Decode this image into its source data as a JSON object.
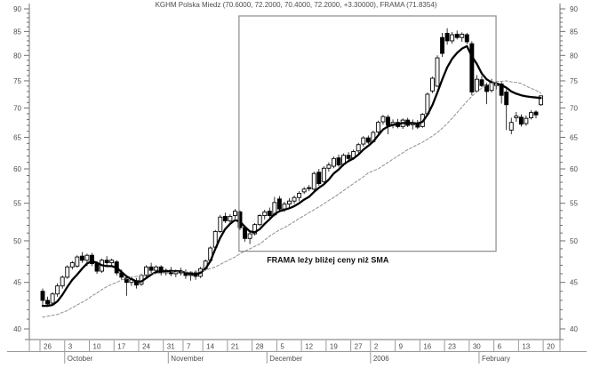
{
  "title": "KGHM Polska Miedz (70.6000, 72.2000, 70.4000, 72.2000, +3.30000), FRAMA (71.8354)",
  "annotation": {
    "text": "FRAMA leży bliżej ceny niż SMA",
    "i": 57.8,
    "price": 47.3
  },
  "colors": {
    "background": "#ffffff",
    "axis": "#707070",
    "grid_separator": "#9a9a9a",
    "label": "#4d4d4d",
    "candle": "#000000",
    "candle_up_fill": "#ffffff",
    "candle_down_fill": "#000000",
    "frama_line": "#000000",
    "sma_line": "#909090",
    "highlight_box": "#8c8c8c"
  },
  "chart_data": {
    "type": "candlestick",
    "title": "KGHM Polska Miedz (70.6000, 72.2000, 70.4000, 72.2000, +3.30000), FRAMA (71.8354)",
    "y_axis": {
      "min": 40,
      "max": 90,
      "scale": "log",
      "major_step": 5,
      "minor_step": 1,
      "sides": [
        "left",
        "right"
      ]
    },
    "x_ticks": [
      {
        "i": 0,
        "label": "26"
      },
      {
        "i": 5,
        "label": "3"
      },
      {
        "i": 10,
        "label": "10"
      },
      {
        "i": 15,
        "label": "17"
      },
      {
        "i": 20,
        "label": "24"
      },
      {
        "i": 25,
        "label": "31"
      },
      {
        "i": 29,
        "label": "7"
      },
      {
        "i": 33,
        "label": "14"
      },
      {
        "i": 38,
        "label": "21"
      },
      {
        "i": 43,
        "label": "28"
      },
      {
        "i": 48,
        "label": "5"
      },
      {
        "i": 53,
        "label": "12"
      },
      {
        "i": 58,
        "label": "19"
      },
      {
        "i": 63,
        "label": "27"
      },
      {
        "i": 67,
        "label": "2"
      },
      {
        "i": 72,
        "label": "9"
      },
      {
        "i": 77,
        "label": "16"
      },
      {
        "i": 82,
        "label": "23"
      },
      {
        "i": 87,
        "label": "30"
      },
      {
        "i": 92,
        "label": "6"
      },
      {
        "i": 97,
        "label": "13"
      },
      {
        "i": 102,
        "label": "20"
      }
    ],
    "month_labels": [
      {
        "i": 5,
        "label": "October"
      },
      {
        "i": 26,
        "label": "November"
      },
      {
        "i": 46,
        "label": "December"
      },
      {
        "i": 67,
        "label": "2006"
      },
      {
        "i": 89,
        "label": "February"
      }
    ],
    "dates": [
      "Sep 26",
      "Sep 27",
      "Sep 28",
      "Sep 29",
      "Sep 30",
      "Oct 3",
      "Oct 4",
      "Oct 5",
      "Oct 6",
      "Oct 7",
      "Oct 10",
      "Oct 11",
      "Oct 12",
      "Oct 13",
      "Oct 14",
      "Oct 17",
      "Oct 18",
      "Oct 19",
      "Oct 20",
      "Oct 21",
      "Oct 24",
      "Oct 25",
      "Oct 26",
      "Oct 27",
      "Oct 28",
      "Oct 31",
      "Nov 2",
      "Nov 3",
      "Nov 4",
      "Nov 7",
      "Nov 8",
      "Nov 9",
      "Nov 10",
      "Nov 14",
      "Nov 15",
      "Nov 16",
      "Nov 17",
      "Nov 18",
      "Nov 21",
      "Nov 22",
      "Nov 23",
      "Nov 24",
      "Nov 25",
      "Nov 28",
      "Nov 29",
      "Nov 30",
      "Dec 1",
      "Dec 2",
      "Dec 5",
      "Dec 6",
      "Dec 7",
      "Dec 8",
      "Dec 9",
      "Dec 12",
      "Dec 13",
      "Dec 14",
      "Dec 15",
      "Dec 16",
      "Dec 19",
      "Dec 20",
      "Dec 21",
      "Dec 22",
      "Dec 23",
      "Dec 27",
      "Dec 28",
      "Dec 29",
      "Dec 30",
      "Jan 2",
      "Jan 3",
      "Jan 4",
      "Jan 5",
      "Jan 6",
      "Jan 9",
      "Jan 10",
      "Jan 11",
      "Jan 12",
      "Jan 13",
      "Jan 16",
      "Jan 17",
      "Jan 18",
      "Jan 19",
      "Jan 20",
      "Jan 23",
      "Jan 24",
      "Jan 25",
      "Jan 26",
      "Jan 27",
      "Jan 30",
      "Jan 31",
      "Feb 1",
      "Feb 2",
      "Feb 3",
      "Feb 6",
      "Feb 7",
      "Feb 8",
      "Feb 9",
      "Feb 10",
      "Feb 13",
      "Feb 14",
      "Feb 15",
      "Feb 16",
      "Feb 17"
    ],
    "ohlc": [
      [
        44.0,
        44.3,
        42.4,
        43.0
      ],
      [
        43.0,
        43.4,
        42.3,
        42.6
      ],
      [
        42.7,
        43.9,
        42.5,
        43.7
      ],
      [
        43.7,
        44.9,
        43.4,
        44.6
      ],
      [
        44.6,
        45.8,
        44.3,
        45.6
      ],
      [
        45.6,
        47.0,
        45.4,
        46.8
      ],
      [
        46.8,
        47.5,
        46.5,
        47.3
      ],
      [
        46.9,
        48.2,
        46.7,
        48.0
      ],
      [
        48.1,
        48.6,
        47.3,
        47.6
      ],
      [
        47.6,
        48.4,
        46.9,
        48.2
      ],
      [
        48.2,
        48.5,
        46.9,
        47.2
      ],
      [
        47.2,
        47.5,
        46.0,
        46.3
      ],
      [
        46.3,
        47.8,
        46.1,
        47.6
      ],
      [
        47.6,
        48.1,
        47.0,
        47.3
      ],
      [
        47.3,
        47.8,
        46.8,
        47.6
      ],
      [
        47.4,
        47.6,
        45.8,
        46.1
      ],
      [
        46.1,
        46.5,
        45.3,
        45.6
      ],
      [
        45.5,
        45.8,
        43.5,
        45.0
      ],
      [
        45.0,
        45.6,
        44.6,
        45.3
      ],
      [
        45.2,
        45.5,
        44.3,
        44.7
      ],
      [
        44.8,
        46.0,
        44.6,
        45.8
      ],
      [
        45.8,
        47.0,
        45.6,
        46.8
      ],
      [
        46.8,
        47.3,
        46.1,
        46.4
      ],
      [
        46.4,
        47.0,
        46.0,
        46.8
      ],
      [
        46.8,
        47.0,
        45.8,
        46.1
      ],
      [
        46.1,
        46.6,
        45.8,
        46.4
      ],
      [
        46.4,
        46.8,
        45.7,
        46.0
      ],
      [
        46.0,
        46.5,
        45.6,
        46.3
      ],
      [
        46.3,
        46.7,
        45.8,
        46.1
      ],
      [
        46.1,
        46.5,
        45.4,
        45.8
      ],
      [
        45.8,
        46.3,
        45.2,
        46.1
      ],
      [
        46.1,
        46.4,
        45.3,
        45.7
      ],
      [
        45.7,
        46.8,
        45.5,
        46.6
      ],
      [
        46.6,
        47.7,
        46.4,
        47.5
      ],
      [
        47.6,
        49.3,
        47.3,
        49.1
      ],
      [
        49.2,
        51.4,
        49.0,
        51.2
      ],
      [
        51.2,
        53.4,
        51.0,
        53.1
      ],
      [
        53.2,
        53.7,
        52.3,
        52.6
      ],
      [
        52.6,
        53.5,
        52.2,
        53.2
      ],
      [
        53.3,
        54.2,
        52.9,
        53.9
      ],
      [
        53.8,
        54.0,
        51.4,
        51.7
      ],
      [
        51.7,
        52.0,
        49.9,
        50.3
      ],
      [
        50.3,
        51.2,
        49.6,
        50.9
      ],
      [
        50.9,
        52.3,
        50.7,
        52.1
      ],
      [
        52.1,
        53.5,
        51.9,
        53.3
      ],
      [
        53.3,
        54.1,
        52.8,
        53.8
      ],
      [
        53.9,
        54.4,
        53.0,
        53.3
      ],
      [
        53.4,
        55.9,
        53.2,
        55.1
      ],
      [
        55.6,
        56.0,
        53.9,
        54.2
      ],
      [
        54.2,
        55.2,
        53.8,
        54.9
      ],
      [
        54.9,
        55.7,
        54.4,
        55.3
      ],
      [
        55.3,
        56.1,
        54.9,
        55.8
      ],
      [
        55.8,
        56.7,
        55.3,
        56.4
      ],
      [
        56.6,
        57.3,
        56.3,
        57.0
      ],
      [
        57.1,
        57.6,
        56.7,
        57.2
      ],
      [
        57.0,
        59.6,
        56.8,
        59.3
      ],
      [
        59.5,
        60.0,
        57.5,
        57.8
      ],
      [
        58.1,
        60.4,
        57.9,
        60.1
      ],
      [
        60.1,
        61.0,
        59.6,
        60.6
      ],
      [
        60.4,
        61.9,
        60.1,
        61.6
      ],
      [
        61.7,
        62.2,
        60.3,
        60.6
      ],
      [
        60.7,
        62.4,
        60.4,
        62.1
      ],
      [
        62.1,
        62.6,
        61.3,
        61.6
      ],
      [
        61.7,
        63.0,
        61.4,
        62.7
      ],
      [
        62.8,
        64.1,
        62.4,
        63.8
      ],
      [
        63.9,
        65.2,
        63.5,
        64.9
      ],
      [
        64.9,
        65.3,
        63.9,
        64.2
      ],
      [
        64.3,
        66.1,
        64.1,
        65.8
      ],
      [
        65.9,
        67.8,
        65.6,
        67.5
      ],
      [
        67.6,
        68.8,
        67.1,
        68.5
      ],
      [
        68.4,
        68.8,
        65.5,
        67.0
      ],
      [
        67.0,
        68.0,
        66.5,
        67.5
      ],
      [
        67.5,
        68.1,
        66.5,
        66.8
      ],
      [
        66.8,
        68.2,
        66.4,
        67.9
      ],
      [
        67.9,
        68.3,
        66.7,
        67.0
      ],
      [
        67.1,
        68.0,
        66.3,
        67.3
      ],
      [
        67.4,
        67.9,
        66.4,
        66.7
      ],
      [
        66.8,
        69.1,
        66.6,
        68.9
      ],
      [
        69.0,
        72.8,
        68.7,
        72.5
      ],
      [
        73.1,
        75.8,
        72.7,
        75.5
      ],
      [
        74.0,
        80.0,
        73.8,
        79.5
      ],
      [
        83.7,
        84.7,
        79.7,
        80.4
      ],
      [
        84.6,
        85.7,
        82.2,
        83.0
      ],
      [
        83.0,
        84.9,
        82.4,
        84.3
      ],
      [
        84.4,
        85.2,
        83.3,
        83.7
      ],
      [
        83.7,
        84.8,
        82.8,
        84.4
      ],
      [
        84.3,
        84.7,
        82.3,
        82.8
      ],
      [
        82.4,
        82.9,
        72.3,
        72.9
      ],
      [
        73.1,
        76.1,
        72.8,
        75.3
      ],
      [
        75.2,
        75.9,
        73.8,
        74.1
      ],
      [
        74.2,
        74.6,
        70.7,
        73.0
      ],
      [
        73.2,
        75.4,
        72.8,
        74.8
      ],
      [
        74.1,
        74.9,
        73.4,
        74.5
      ],
      [
        74.4,
        74.8,
        70.8,
        72.3
      ],
      [
        72.9,
        73.4,
        66.2,
        70.6
      ],
      [
        66.2,
        68.3,
        65.5,
        67.5
      ],
      [
        68.3,
        69.3,
        67.6,
        68.6
      ],
      [
        68.4,
        68.9,
        66.8,
        67.2
      ],
      [
        67.3,
        68.7,
        66.9,
        68.2
      ],
      [
        68.3,
        69.6,
        68.0,
        69.2
      ],
      [
        69.3,
        69.6,
        68.2,
        68.8
      ],
      [
        70.6,
        72.2,
        70.4,
        72.2
      ]
    ],
    "series": [
      {
        "name": "FRAMA",
        "style": "solid-thick",
        "last_value": 71.8354,
        "values": [
          42.4,
          42.4,
          42.5,
          42.9,
          43.6,
          44.5,
          45.3,
          45.9,
          46.6,
          47.2,
          47.5,
          47.3,
          47.0,
          46.9,
          46.9,
          46.7,
          46.2,
          45.7,
          45.4,
          45.1,
          45.1,
          45.5,
          45.9,
          46.2,
          46.3,
          46.3,
          46.3,
          46.3,
          46.3,
          46.1,
          46.0,
          45.9,
          46.1,
          46.6,
          47.5,
          49.0,
          50.4,
          51.5,
          52.2,
          52.7,
          52.5,
          51.8,
          51.2,
          51.1,
          51.5,
          52.2,
          52.8,
          53.5,
          53.9,
          54.1,
          54.3,
          54.6,
          55.0,
          55.5,
          55.9,
          56.6,
          57.2,
          57.7,
          58.4,
          59.3,
          59.9,
          60.7,
          61.2,
          61.6,
          62.2,
          63.0,
          63.6,
          64.3,
          65.3,
          66.3,
          66.8,
          67.1,
          67.2,
          67.4,
          67.4,
          67.4,
          67.3,
          67.6,
          68.8,
          70.5,
          72.8,
          75.3,
          77.6,
          79.3,
          80.5,
          81.4,
          81.9,
          79.8,
          78.3,
          76.4,
          75.3,
          74.7,
          74.5,
          74.2,
          73.7,
          73.0,
          72.6,
          72.3,
          72.1,
          72.0,
          71.9,
          71.8
        ]
      },
      {
        "name": "SMA",
        "style": "dashed",
        "values": [
          41.2,
          41.3,
          41.4,
          41.5,
          41.7,
          41.9,
          42.2,
          42.5,
          42.8,
          43.1,
          43.5,
          43.8,
          44.2,
          44.5,
          44.8,
          45.0,
          45.3,
          45.4,
          45.6,
          45.7,
          45.8,
          45.9,
          46.0,
          46.0,
          46.1,
          46.1,
          46.2,
          46.2,
          46.2,
          46.2,
          46.2,
          46.2,
          46.3,
          46.4,
          46.6,
          46.8,
          47.1,
          47.4,
          47.7,
          48.0,
          48.4,
          48.7,
          49.0,
          49.3,
          49.6,
          50.1,
          50.6,
          51.0,
          51.4,
          51.7,
          52.1,
          52.5,
          52.9,
          53.3,
          53.7,
          54.1,
          54.5,
          54.9,
          55.4,
          55.8,
          56.3,
          56.8,
          57.3,
          57.8,
          58.3,
          58.8,
          59.4,
          59.7,
          60.0,
          60.5,
          61.0,
          61.5,
          62.0,
          62.5,
          63.0,
          63.4,
          63.8,
          64.2,
          64.7,
          65.2,
          65.8,
          66.5,
          67.3,
          68.2,
          69.2,
          70.2,
          71.2,
          72.1,
          73.0,
          73.6,
          74.2,
          74.5,
          74.9,
          74.9,
          75.0,
          74.8,
          74.7,
          74.5,
          74.0,
          73.6,
          73.2,
          72.7
        ]
      }
    ],
    "highlight_box": {
      "i0": 39.8,
      "i1": 91.9,
      "price_top": 88.4,
      "price_bottom": 48.7
    },
    "legend_position": "none",
    "grid": "off"
  }
}
